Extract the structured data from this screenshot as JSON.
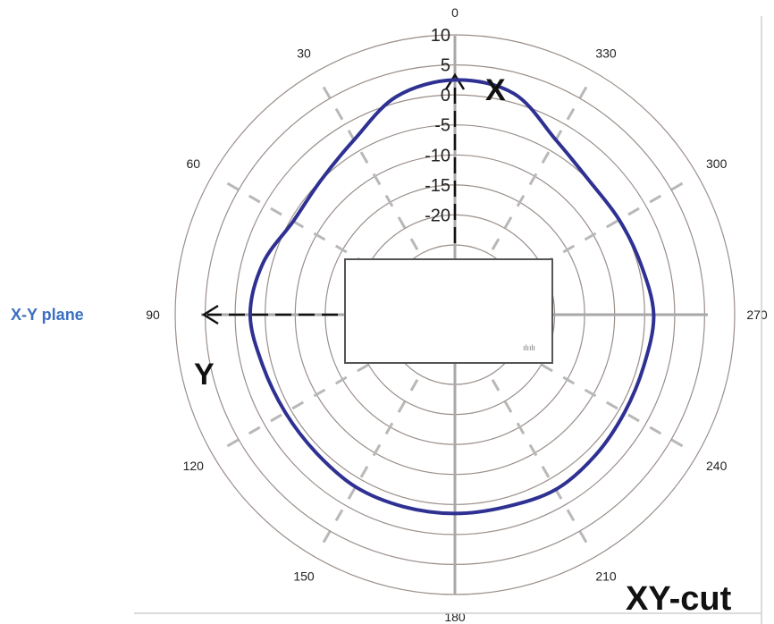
{
  "colors": {
    "pattern": "#2e3192",
    "plane_label": "#3b6fc2"
  },
  "labels": {
    "plane": "X-Y plane",
    "cut": "XY-cut",
    "x_axis": "X",
    "y_axis": "Y",
    "device_logo": "ılıılı"
  },
  "chart_data": {
    "type": "polar",
    "title": "",
    "angle_ticks": [
      "0",
      "30",
      "60",
      "90",
      "120",
      "150",
      "180",
      "210",
      "240",
      "270",
      "300",
      "330"
    ],
    "angle_direction": "counterclockwise",
    "zero_at": "top",
    "radial_ticks": [
      "10",
      "5",
      "0",
      "-5",
      "-10",
      "-15",
      "-20"
    ],
    "radial_range": [
      -25,
      10
    ],
    "radial_unit": "",
    "series": [
      {
        "angles_deg": [
          0,
          15,
          30,
          45,
          60,
          75,
          90,
          105,
          120,
          135,
          150,
          165,
          180,
          195,
          210,
          225,
          240,
          255,
          270,
          285,
          300,
          315,
          330,
          345
        ],
        "values": [
          2.5,
          1.0,
          -3.0,
          -5.0,
          -5.5,
          -3.5,
          -2.5,
          -3.5,
          -4.0,
          -4.0,
          -3.5,
          -3.5,
          -3.5,
          -3.5,
          -3.0,
          -3.5,
          -4.0,
          -4.0,
          -3.5,
          -4.5,
          -5.0,
          -5.0,
          -3.0,
          1.5
        ]
      }
    ]
  }
}
